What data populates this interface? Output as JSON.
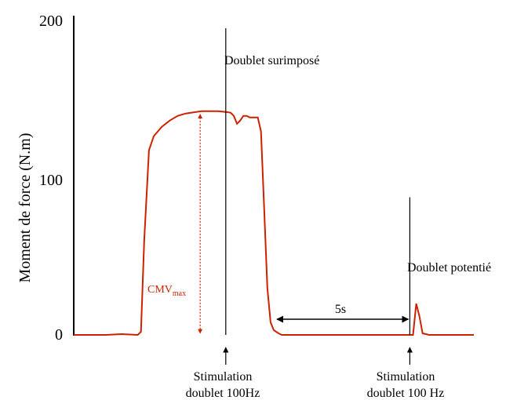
{
  "chart_data": {
    "type": "line",
    "ylabel": "Moment de force (N.m)",
    "xlabel": "",
    "ylim": [
      0,
      200
    ],
    "xlim": [
      0,
      25
    ],
    "y_ticks": [
      {
        "value": 0,
        "label": "0"
      },
      {
        "value": 100,
        "label": "100"
      },
      {
        "value": 200,
        "label": "200"
      }
    ],
    "series": [
      {
        "x": [
          0,
          1,
          2,
          3,
          4,
          4.2,
          4.4,
          4.7,
          5,
          5.5,
          6,
          6.5,
          7,
          8,
          9,
          9.5,
          9.8,
          10,
          10.2,
          10.4,
          10.6,
          10.8,
          11,
          11.5,
          11.7,
          11.9,
          12.1,
          12.3,
          12.5,
          12.8,
          13,
          14,
          16,
          18,
          20,
          21,
          21.2,
          21.4,
          21.6,
          21.8,
          22.2,
          25
        ],
        "values": [
          0,
          0,
          0,
          0.5,
          0,
          2,
          60,
          118,
          127,
          133,
          137,
          140,
          141.5,
          143,
          143,
          142.5,
          142,
          140,
          135,
          137,
          140,
          140,
          139,
          139,
          130,
          80,
          30,
          8,
          3,
          1,
          0,
          0,
          0,
          0,
          0,
          0,
          0,
          20,
          12,
          1,
          0,
          0
        ],
        "color": "#cc2200"
      }
    ]
  },
  "annotations": {
    "superimposed_label": "Doublet surimposé",
    "potentiated_label": "Doublet potentié",
    "cmv_label_main": "CMV",
    "cmv_label_sub": "max",
    "interval_label": "5s",
    "stim1_line1": "Stimulation",
    "stim1_line2": "doublet 100Hz",
    "stim2_line1": "Stimulation",
    "stim2_line2": "doublet 100 Hz"
  },
  "events": {
    "stim1_x": 9.5,
    "stim2_x": 21,
    "cmv_x": 7.9,
    "cmv_value": 142,
    "stim1_line_top": 196,
    "stim2_line_top": 88,
    "interval_from_x": 12.6,
    "interval_to_x": 21,
    "interval_y": 10
  },
  "colors": {
    "trace": "#cc2200",
    "axis": "#000000",
    "text": "#000000"
  }
}
